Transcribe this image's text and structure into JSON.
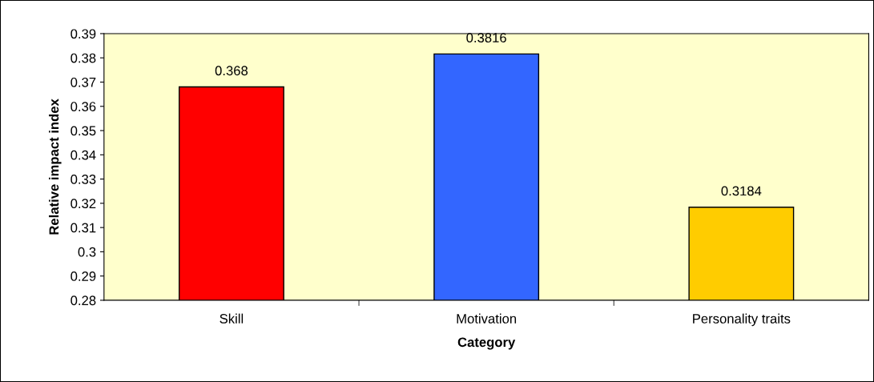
{
  "chart_data": {
    "type": "bar",
    "xlabel": "Category",
    "ylabel": "Relative impact index",
    "categories": [
      "Skill",
      "Motivation",
      "Personality traits"
    ],
    "values": [
      0.368,
      0.3816,
      0.3184
    ],
    "colors": [
      "#ff0000",
      "#3366ff",
      "#ffcc00"
    ],
    "ylim": [
      0.28,
      0.39
    ],
    "yticks": [
      0.28,
      0.29,
      0.3,
      0.31,
      0.32,
      0.33,
      0.34,
      0.35,
      0.36,
      0.37,
      0.38,
      0.39
    ],
    "data_labels": true,
    "grid": false,
    "legend": false
  }
}
